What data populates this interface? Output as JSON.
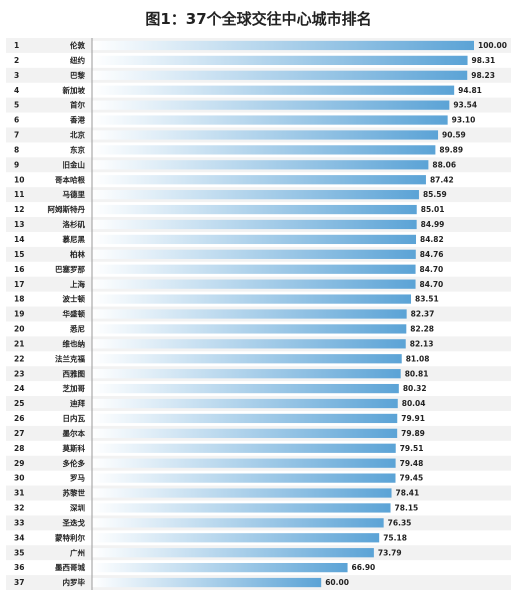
{
  "chart_data": {
    "type": "bar",
    "orientation": "horizontal",
    "title": "图1：37个全球交往中心城市排名",
    "ranks": [
      "1",
      "2",
      "3",
      "4",
      "5",
      "6",
      "7",
      "8",
      "9",
      "10",
      "11",
      "12",
      "13",
      "14",
      "15",
      "16",
      "17",
      "18",
      "19",
      "20",
      "21",
      "22",
      "23",
      "24",
      "25",
      "26",
      "27",
      "28",
      "29",
      "30",
      "31",
      "32",
      "33",
      "34",
      "35",
      "36",
      "37"
    ],
    "categories": [
      "伦敦",
      "纽约",
      "巴黎",
      "新加坡",
      "首尔",
      "香港",
      "北京",
      "东京",
      "旧金山",
      "哥本哈根",
      "马德里",
      "阿姆斯特丹",
      "洛杉矶",
      "慕尼黑",
      "柏林",
      "巴塞罗那",
      "上海",
      "波士顿",
      "华盛顿",
      "悉尼",
      "维也纳",
      "法兰克福",
      "西雅图",
      "芝加哥",
      "迪拜",
      "日内瓦",
      "墨尔本",
      "莫斯科",
      "多伦多",
      "罗马",
      "苏黎世",
      "深圳",
      "圣迭戈",
      "蒙特利尔",
      "广州",
      "墨西哥城",
      "内罗毕"
    ],
    "values": [
      100.0,
      98.31,
      98.23,
      94.81,
      93.54,
      93.1,
      90.59,
      89.89,
      88.06,
      87.42,
      85.59,
      85.01,
      84.99,
      84.82,
      84.76,
      84.7,
      84.7,
      83.51,
      82.37,
      82.28,
      82.13,
      81.08,
      80.81,
      80.32,
      80.04,
      79.91,
      79.89,
      79.51,
      79.48,
      79.45,
      78.41,
      78.15,
      76.35,
      75.18,
      73.79,
      66.9,
      60.0
    ],
    "value_labels": [
      "100.00",
      "98.31",
      "98.23",
      "94.81",
      "93.54",
      "93.10",
      "90.59",
      "89.89",
      "88.06",
      "87.42",
      "85.59",
      "85.01",
      "84.99",
      "84.82",
      "84.76",
      "84.70",
      "84.70",
      "83.51",
      "82.37",
      "82.28",
      "82.13",
      "81.08",
      "80.81",
      "80.32",
      "80.04",
      "79.91",
      "79.89",
      "79.51",
      "79.48",
      "79.45",
      "78.41",
      "78.15",
      "76.35",
      "75.18",
      "73.79",
      "66.90",
      "60.00"
    ],
    "bar_color_start": "#ffffff",
    "bar_color_end": "#5ba3d6",
    "row_stripe_color": "#f2f2f2",
    "axis_color": "#999999"
  }
}
